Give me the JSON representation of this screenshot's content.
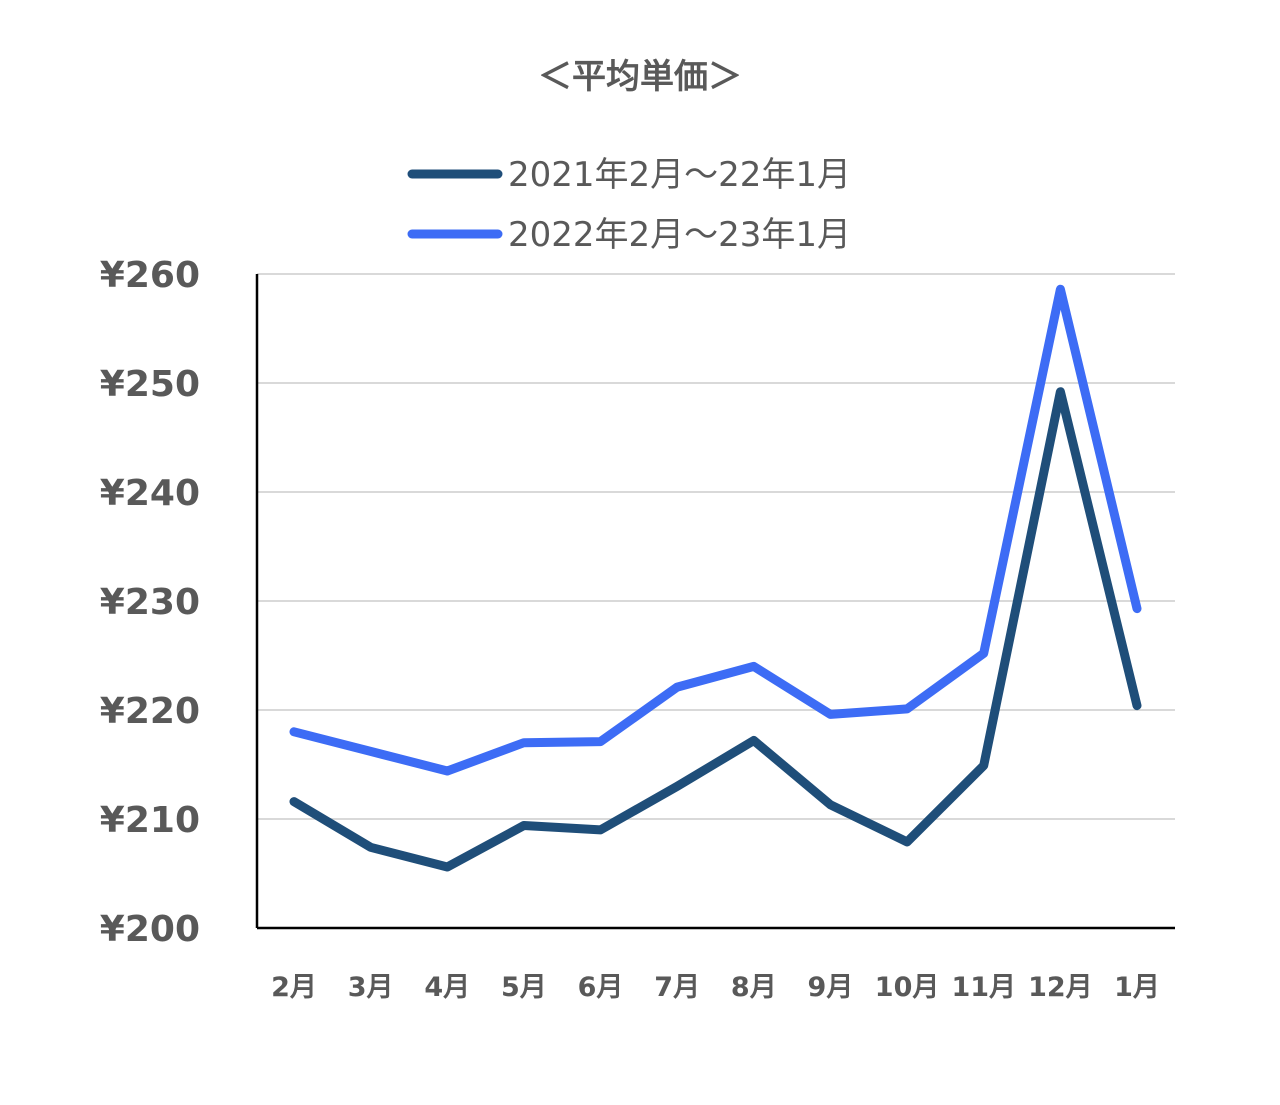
{
  "chart_data": {
    "type": "line",
    "title": "＜平均単価＞",
    "xlabel": "",
    "ylabel": "",
    "categories": [
      "2月",
      "3月",
      "4月",
      "5月",
      "6月",
      "7月",
      "8月",
      "9月",
      "10月",
      "11月",
      "12月",
      "1月"
    ],
    "ylim": [
      200,
      260
    ],
    "yticks": [
      200,
      210,
      220,
      230,
      240,
      250,
      260
    ],
    "ytick_labels": [
      "¥200",
      "¥210",
      "¥220",
      "¥230",
      "¥240",
      "¥250",
      "¥260"
    ],
    "grid": true,
    "legend_position": "top",
    "series": [
      {
        "name": "2021年2月～22年1月",
        "color": "#1f4e79",
        "values": [
          211.6,
          207.4,
          205.6,
          209.4,
          209.0,
          213.0,
          217.2,
          211.3,
          207.9,
          214.9,
          249.2,
          220.4
        ]
      },
      {
        "name": "2022年2月～23年1月",
        "color": "#3d6cf5",
        "values": [
          218.0,
          216.2,
          214.4,
          217.0,
          217.1,
          222.1,
          224.0,
          219.6,
          220.1,
          225.2,
          258.6,
          229.3
        ]
      }
    ]
  }
}
